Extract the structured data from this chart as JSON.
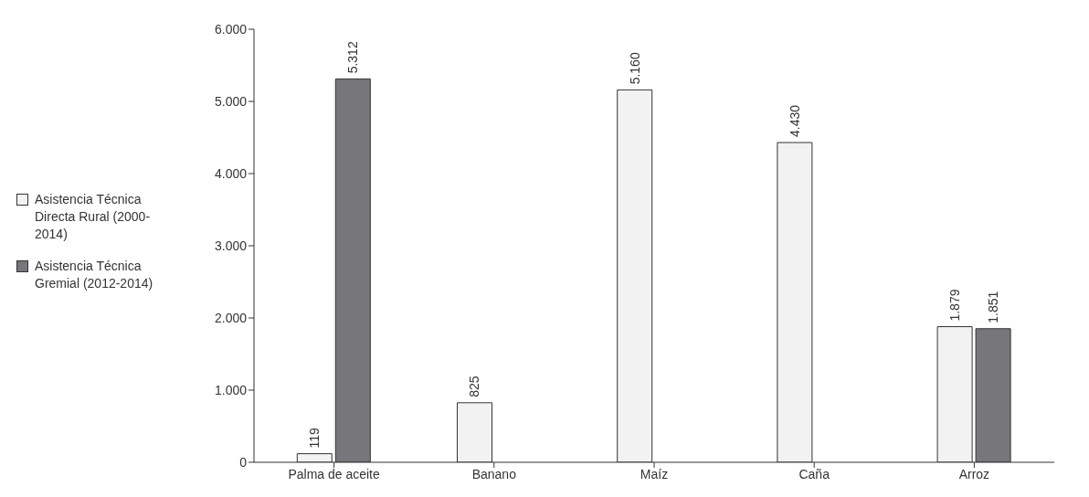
{
  "chart_data": {
    "type": "bar",
    "categories": [
      "Palma de aceite",
      "Banano",
      "Maíz",
      "Caña",
      "Arroz"
    ],
    "series": [
      {
        "name": "Asistencia Técnica Directa Rural (2000-2014)",
        "color": "#f2f2f2",
        "values": [
          119,
          825,
          5160,
          4430,
          1879
        ],
        "value_labels": [
          "119",
          "825",
          "5.160",
          "4.430",
          "1.879"
        ]
      },
      {
        "name": "Asistencia Técnica Gremial (2012-2014)",
        "color": "#77777b",
        "values": [
          5312,
          null,
          null,
          null,
          1851
        ],
        "value_labels": [
          "5.312",
          null,
          null,
          null,
          "1.851"
        ]
      }
    ],
    "ylim": [
      0,
      6000
    ],
    "yticks": [
      {
        "value": 0,
        "label": "0"
      },
      {
        "value": 1000,
        "label": "1.000"
      },
      {
        "value": 2000,
        "label": "2.000"
      },
      {
        "value": 3000,
        "label": "3.000"
      },
      {
        "value": 4000,
        "label": "4.000"
      },
      {
        "value": 5000,
        "label": "5.000"
      },
      {
        "value": 6000,
        "label": "6.000"
      }
    ],
    "grid": false,
    "legend": "left"
  }
}
